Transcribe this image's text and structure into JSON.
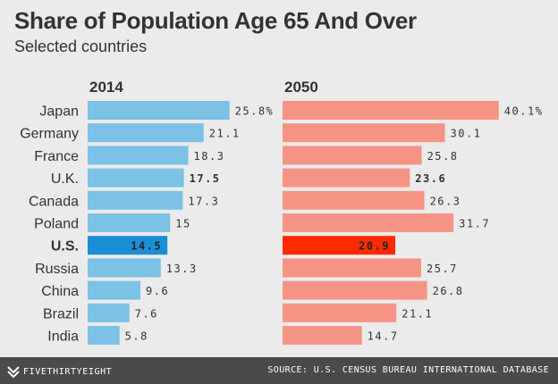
{
  "header": {
    "title": "Share of Population Age 65 And Over",
    "subtitle": "Selected countries"
  },
  "chart_data": {
    "type": "bar",
    "orientation": "horizontal",
    "title": "Share of Population Age 65 And Over",
    "subtitle": "Selected countries",
    "categories": [
      "Japan",
      "Germany",
      "France",
      "U.K.",
      "Canada",
      "Poland",
      "U.S.",
      "Russia",
      "China",
      "Brazil",
      "India"
    ],
    "series": [
      {
        "name": "2014",
        "values": [
          25.8,
          21.1,
          18.3,
          17.5,
          17.3,
          15,
          14.5,
          13.3,
          9.6,
          7.6,
          5.8
        ],
        "labels": [
          "25.8%",
          "21.1",
          "18.3",
          "17.5",
          "17.3",
          "15",
          "14.5",
          "13.3",
          "9.6",
          "7.6",
          "5.8"
        ],
        "color": "#7cc1e6",
        "highlight_color": "#1a8fd6"
      },
      {
        "name": "2050",
        "values": [
          40.1,
          30.1,
          25.8,
          23.6,
          26.3,
          31.7,
          20.9,
          25.7,
          26.8,
          21.1,
          14.7
        ],
        "labels": [
          "40.1%",
          "30.1",
          "25.8",
          "23.6",
          "26.3",
          "31.7",
          "20.9",
          "25.7",
          "26.8",
          "21.1",
          "14.7"
        ],
        "color": "#f59484",
        "highlight_color": "#ff2a00"
      }
    ],
    "highlighted": "U.S.",
    "bold_categories": [
      "U.K.",
      "U.S."
    ],
    "xlim": [
      0,
      41
    ],
    "grid": false,
    "legend": "none"
  },
  "footer": {
    "brand": "FIVETHIRTYEIGHT",
    "source": "SOURCE: U.S. CENSUS BUREAU INTERNATIONAL DATABASE"
  },
  "colors": {
    "background": "#ebebeb",
    "text": "#333333",
    "footer_bg": "#4a4a4a"
  }
}
